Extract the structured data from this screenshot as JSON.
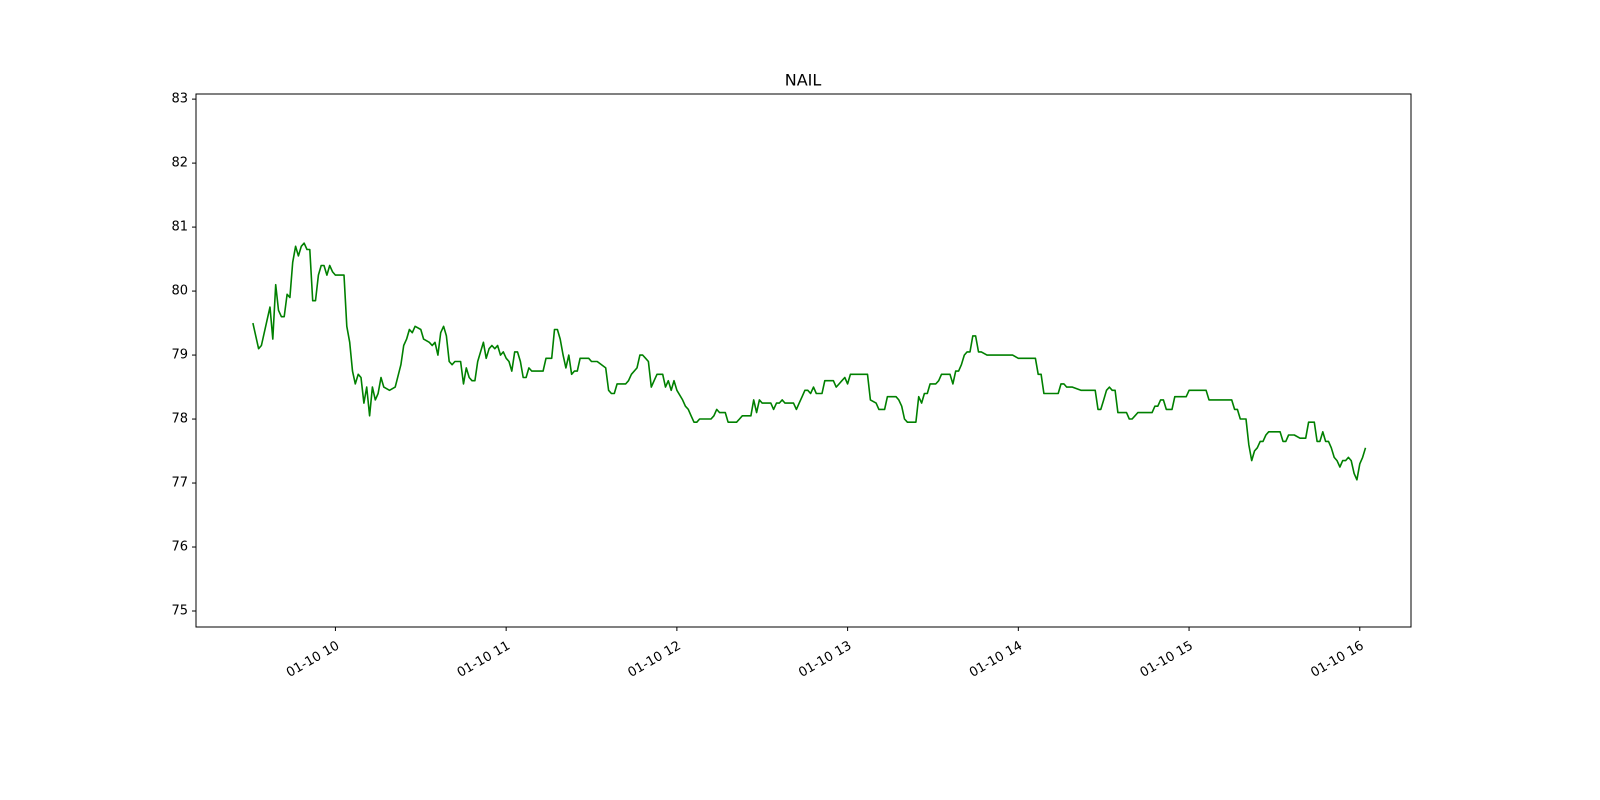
{
  "chart_data": {
    "type": "line",
    "title": "NAIL",
    "x": [
      "01-10 09:31",
      "01-10 09:33",
      "01-10 09:34",
      "01-10 09:36",
      "01-10 09:37",
      "01-10 09:38",
      "01-10 09:39",
      "01-10 09:40",
      "01-10 09:41",
      "01-10 09:42",
      "01-10 09:43",
      "01-10 09:44",
      "01-10 09:45",
      "01-10 09:46",
      "01-10 09:47",
      "01-10 09:48",
      "01-10 09:49",
      "01-10 09:50",
      "01-10 09:51",
      "01-10 09:52",
      "01-10 09:53",
      "01-10 09:54",
      "01-10 09:55",
      "01-10 09:56",
      "01-10 09:57",
      "01-10 09:58",
      "01-10 09:59",
      "01-10 10:00",
      "01-10 10:03",
      "01-10 10:04",
      "01-10 10:05",
      "01-10 10:06",
      "01-10 10:07",
      "01-10 10:08",
      "01-10 10:09",
      "01-10 10:10",
      "01-10 10:11",
      "01-10 10:12",
      "01-10 10:13",
      "01-10 10:14",
      "01-10 10:15",
      "01-10 10:16",
      "01-10 10:17",
      "01-10 10:19",
      "01-10 10:21",
      "01-10 10:23",
      "01-10 10:24",
      "01-10 10:25",
      "01-10 10:26",
      "01-10 10:27",
      "01-10 10:28",
      "01-10 10:30",
      "01-10 10:31",
      "01-10 10:33",
      "01-10 10:34",
      "01-10 10:35",
      "01-10 10:36",
      "01-10 10:37",
      "01-10 10:38",
      "01-10 10:39",
      "01-10 10:40",
      "01-10 10:41",
      "01-10 10:42",
      "01-10 10:44",
      "01-10 10:45",
      "01-10 10:46",
      "01-10 10:47",
      "01-10 10:48",
      "01-10 10:49",
      "01-10 10:50",
      "01-10 10:52",
      "01-10 10:53",
      "01-10 10:54",
      "01-10 10:55",
      "01-10 10:56",
      "01-10 10:57",
      "01-10 10:58",
      "01-10 10:59",
      "01-10 11:00",
      "01-10 11:01",
      "01-10 11:02",
      "01-10 11:03",
      "01-10 11:04",
      "01-10 11:05",
      "01-10 11:06",
      "01-10 11:07",
      "01-10 11:08",
      "01-10 11:09",
      "01-10 11:12",
      "01-10 11:13",
      "01-10 11:14",
      "01-10 11:16",
      "01-10 11:17",
      "01-10 11:18",
      "01-10 11:19",
      "01-10 11:20",
      "01-10 11:21",
      "01-10 11:22",
      "01-10 11:23",
      "01-10 11:24",
      "01-10 11:25",
      "01-10 11:26",
      "01-10 11:27",
      "01-10 11:29",
      "01-10 11:30",
      "01-10 11:32",
      "01-10 11:35",
      "01-10 11:36",
      "01-10 11:37",
      "01-10 11:38",
      "01-10 11:39",
      "01-10 11:42",
      "01-10 11:43",
      "01-10 11:44",
      "01-10 11:46",
      "01-10 11:47",
      "01-10 11:48",
      "01-10 11:49",
      "01-10 11:50",
      "01-10 11:51",
      "01-10 11:52",
      "01-10 11:53",
      "01-10 11:55",
      "01-10 11:56",
      "01-10 11:57",
      "01-10 11:58",
      "01-10 11:59",
      "01-10 12:00",
      "01-10 12:02",
      "01-10 12:03",
      "01-10 12:04",
      "01-10 12:05",
      "01-10 12:06",
      "01-10 12:07",
      "01-10 12:08",
      "01-10 12:12",
      "01-10 12:13",
      "01-10 12:14",
      "01-10 12:15",
      "01-10 12:17",
      "01-10 12:18",
      "01-10 12:21",
      "01-10 12:22",
      "01-10 12:23",
      "01-10 12:26",
      "01-10 12:27",
      "01-10 12:28",
      "01-10 12:29",
      "01-10 12:30",
      "01-10 12:33",
      "01-10 12:34",
      "01-10 12:35",
      "01-10 12:36",
      "01-10 12:37",
      "01-10 12:38",
      "01-10 12:41",
      "01-10 12:42",
      "01-10 12:43",
      "01-10 12:44",
      "01-10 12:45",
      "01-10 12:46",
      "01-10 12:47",
      "01-10 12:48",
      "01-10 12:49",
      "01-10 12:51",
      "01-10 12:52",
      "01-10 12:55",
      "01-10 12:56",
      "01-10 12:57",
      "01-10 12:58",
      "01-10 12:59",
      "01-10 13:00",
      "01-10 13:01",
      "01-10 13:07",
      "01-10 13:08",
      "01-10 13:10",
      "01-10 13:11",
      "01-10 13:13",
      "01-10 13:14",
      "01-10 13:17",
      "01-10 13:18",
      "01-10 13:19",
      "01-10 13:20",
      "01-10 13:21",
      "01-10 13:24",
      "01-10 13:25",
      "01-10 13:26",
      "01-10 13:27",
      "01-10 13:28",
      "01-10 13:29",
      "01-10 13:31",
      "01-10 13:32",
      "01-10 13:33",
      "01-10 13:36",
      "01-10 13:37",
      "01-10 13:38",
      "01-10 13:39",
      "01-10 13:40",
      "01-10 13:41",
      "01-10 13:42",
      "01-10 13:43",
      "01-10 13:44",
      "01-10 13:45",
      "01-10 13:46",
      "01-10 13:47",
      "01-10 13:49",
      "01-10 13:58",
      "01-10 14:00",
      "01-10 14:06",
      "01-10 14:07",
      "01-10 14:08",
      "01-10 14:09",
      "01-10 14:14",
      "01-10 14:15",
      "01-10 14:16",
      "01-10 14:17",
      "01-10 14:19",
      "01-10 14:22",
      "01-10 14:27",
      "01-10 14:28",
      "01-10 14:29",
      "01-10 14:30",
      "01-10 14:31",
      "01-10 14:32",
      "01-10 14:33",
      "01-10 14:34",
      "01-10 14:35",
      "01-10 14:38",
      "01-10 14:39",
      "01-10 14:40",
      "01-10 14:41",
      "01-10 14:42",
      "01-10 14:47",
      "01-10 14:48",
      "01-10 14:49",
      "01-10 14:50",
      "01-10 14:51",
      "01-10 14:52",
      "01-10 14:54",
      "01-10 14:55",
      "01-10 14:59",
      "01-10 15:00",
      "01-10 15:06",
      "01-10 15:07",
      "01-10 15:15",
      "01-10 15:16",
      "01-10 15:17",
      "01-10 15:18",
      "01-10 15:20",
      "01-10 15:21",
      "01-10 15:22",
      "01-10 15:23",
      "01-10 15:24",
      "01-10 15:25",
      "01-10 15:26",
      "01-10 15:27",
      "01-10 15:28",
      "01-10 15:32",
      "01-10 15:33",
      "01-10 15:34",
      "01-10 15:35",
      "01-10 15:37",
      "01-10 15:39",
      "01-10 15:41",
      "01-10 15:42",
      "01-10 15:44",
      "01-10 15:45",
      "01-10 15:46",
      "01-10 15:47",
      "01-10 15:48",
      "01-10 15:49",
      "01-10 15:50",
      "01-10 15:51",
      "01-10 15:52",
      "01-10 15:53",
      "01-10 15:54",
      "01-10 15:55",
      "01-10 15:56",
      "01-10 15:57",
      "01-10 15:58",
      "01-10 15:59",
      "01-10 16:00",
      "01-10 16:01",
      "01-10 16:02"
    ],
    "series": [
      {
        "name": "NAIL",
        "color": "#008000",
        "values": [
          79.5,
          79.1,
          79.15,
          79.55,
          79.75,
          79.25,
          80.1,
          79.7,
          79.6,
          79.6,
          79.95,
          79.9,
          80.45,
          80.7,
          80.55,
          80.7,
          80.75,
          80.65,
          80.65,
          79.85,
          79.85,
          80.25,
          80.4,
          80.4,
          80.25,
          80.4,
          80.3,
          80.25,
          80.25,
          79.45,
          79.2,
          78.75,
          78.55,
          78.7,
          78.65,
          78.25,
          78.5,
          78.05,
          78.5,
          78.3,
          78.4,
          78.65,
          78.5,
          78.45,
          78.5,
          78.85,
          79.15,
          79.25,
          79.4,
          79.35,
          79.45,
          79.4,
          79.25,
          79.2,
          79.15,
          79.2,
          79.0,
          79.35,
          79.45,
          79.3,
          78.9,
          78.85,
          78.9,
          78.9,
          78.55,
          78.8,
          78.65,
          78.6,
          78.6,
          78.9,
          79.2,
          78.95,
          79.1,
          79.15,
          79.1,
          79.15,
          79.0,
          79.05,
          78.95,
          78.9,
          78.75,
          79.05,
          79.05,
          78.9,
          78.65,
          78.65,
          78.8,
          78.75,
          78.75,
          78.75,
          78.95,
          78.95,
          79.4,
          79.4,
          79.25,
          79.0,
          78.8,
          79.0,
          78.7,
          78.75,
          78.75,
          78.95,
          78.95,
          78.95,
          78.9,
          78.9,
          78.8,
          78.45,
          78.4,
          78.4,
          78.55,
          78.55,
          78.6,
          78.7,
          78.8,
          79.0,
          79.0,
          78.95,
          78.9,
          78.5,
          78.6,
          78.7,
          78.7,
          78.5,
          78.6,
          78.45,
          78.6,
          78.45,
          78.3,
          78.2,
          78.15,
          78.05,
          77.95,
          77.95,
          78.0,
          78.0,
          78.05,
          78.15,
          78.1,
          78.1,
          77.95,
          77.95,
          78.0,
          78.05,
          78.05,
          78.3,
          78.1,
          78.3,
          78.25,
          78.25,
          78.15,
          78.25,
          78.25,
          78.3,
          78.25,
          78.25,
          78.15,
          78.25,
          78.35,
          78.45,
          78.45,
          78.4,
          78.5,
          78.4,
          78.4,
          78.6,
          78.6,
          78.5,
          78.55,
          78.6,
          78.65,
          78.55,
          78.7,
          78.7,
          78.3,
          78.25,
          78.15,
          78.15,
          78.35,
          78.35,
          78.3,
          78.2,
          78.0,
          77.95,
          77.95,
          78.35,
          78.25,
          78.4,
          78.4,
          78.55,
          78.55,
          78.6,
          78.7,
          78.7,
          78.55,
          78.75,
          78.75,
          78.85,
          79.0,
          79.05,
          79.05,
          79.3,
          79.3,
          79.05,
          79.05,
          79.0,
          79.0,
          78.95,
          78.95,
          78.7,
          78.7,
          78.4,
          78.4,
          78.55,
          78.55,
          78.5,
          78.5,
          78.45,
          78.45,
          78.15,
          78.15,
          78.3,
          78.45,
          78.5,
          78.45,
          78.45,
          78.1,
          78.1,
          78.0,
          78.0,
          78.05,
          78.1,
          78.1,
          78.2,
          78.2,
          78.3,
          78.3,
          78.15,
          78.15,
          78.35,
          78.35,
          78.45,
          78.45,
          78.3,
          78.3,
          78.15,
          78.15,
          78.0,
          78.0,
          77.6,
          77.35,
          77.5,
          77.55,
          77.65,
          77.65,
          77.75,
          77.8,
          77.8,
          77.65,
          77.65,
          77.75,
          77.75,
          77.7,
          77.7,
          77.95,
          77.95,
          77.65,
          77.65,
          77.8,
          77.65,
          77.65,
          77.55,
          77.4,
          77.35,
          77.25,
          77.35,
          77.35,
          77.4,
          77.35,
          77.15,
          77.05,
          77.3,
          77.4,
          77.55
        ]
      }
    ],
    "xlim": [
      "01-10 09:11",
      "01-10 16:18"
    ],
    "xticks": [
      {
        "value": "01-10 10:00",
        "label": "01-10 10"
      },
      {
        "value": "01-10 11:00",
        "label": "01-10 11"
      },
      {
        "value": "01-10 12:00",
        "label": "01-10 12"
      },
      {
        "value": "01-10 13:00",
        "label": "01-10 13"
      },
      {
        "value": "01-10 14:00",
        "label": "01-10 14"
      },
      {
        "value": "01-10 15:00",
        "label": "01-10 15"
      },
      {
        "value": "01-10 16:00",
        "label": "01-10 16"
      }
    ],
    "ylim": [
      74.75,
      83.08
    ],
    "yticks": [
      75,
      76,
      77,
      78,
      79,
      80,
      81,
      82,
      83
    ],
    "grid": false
  }
}
